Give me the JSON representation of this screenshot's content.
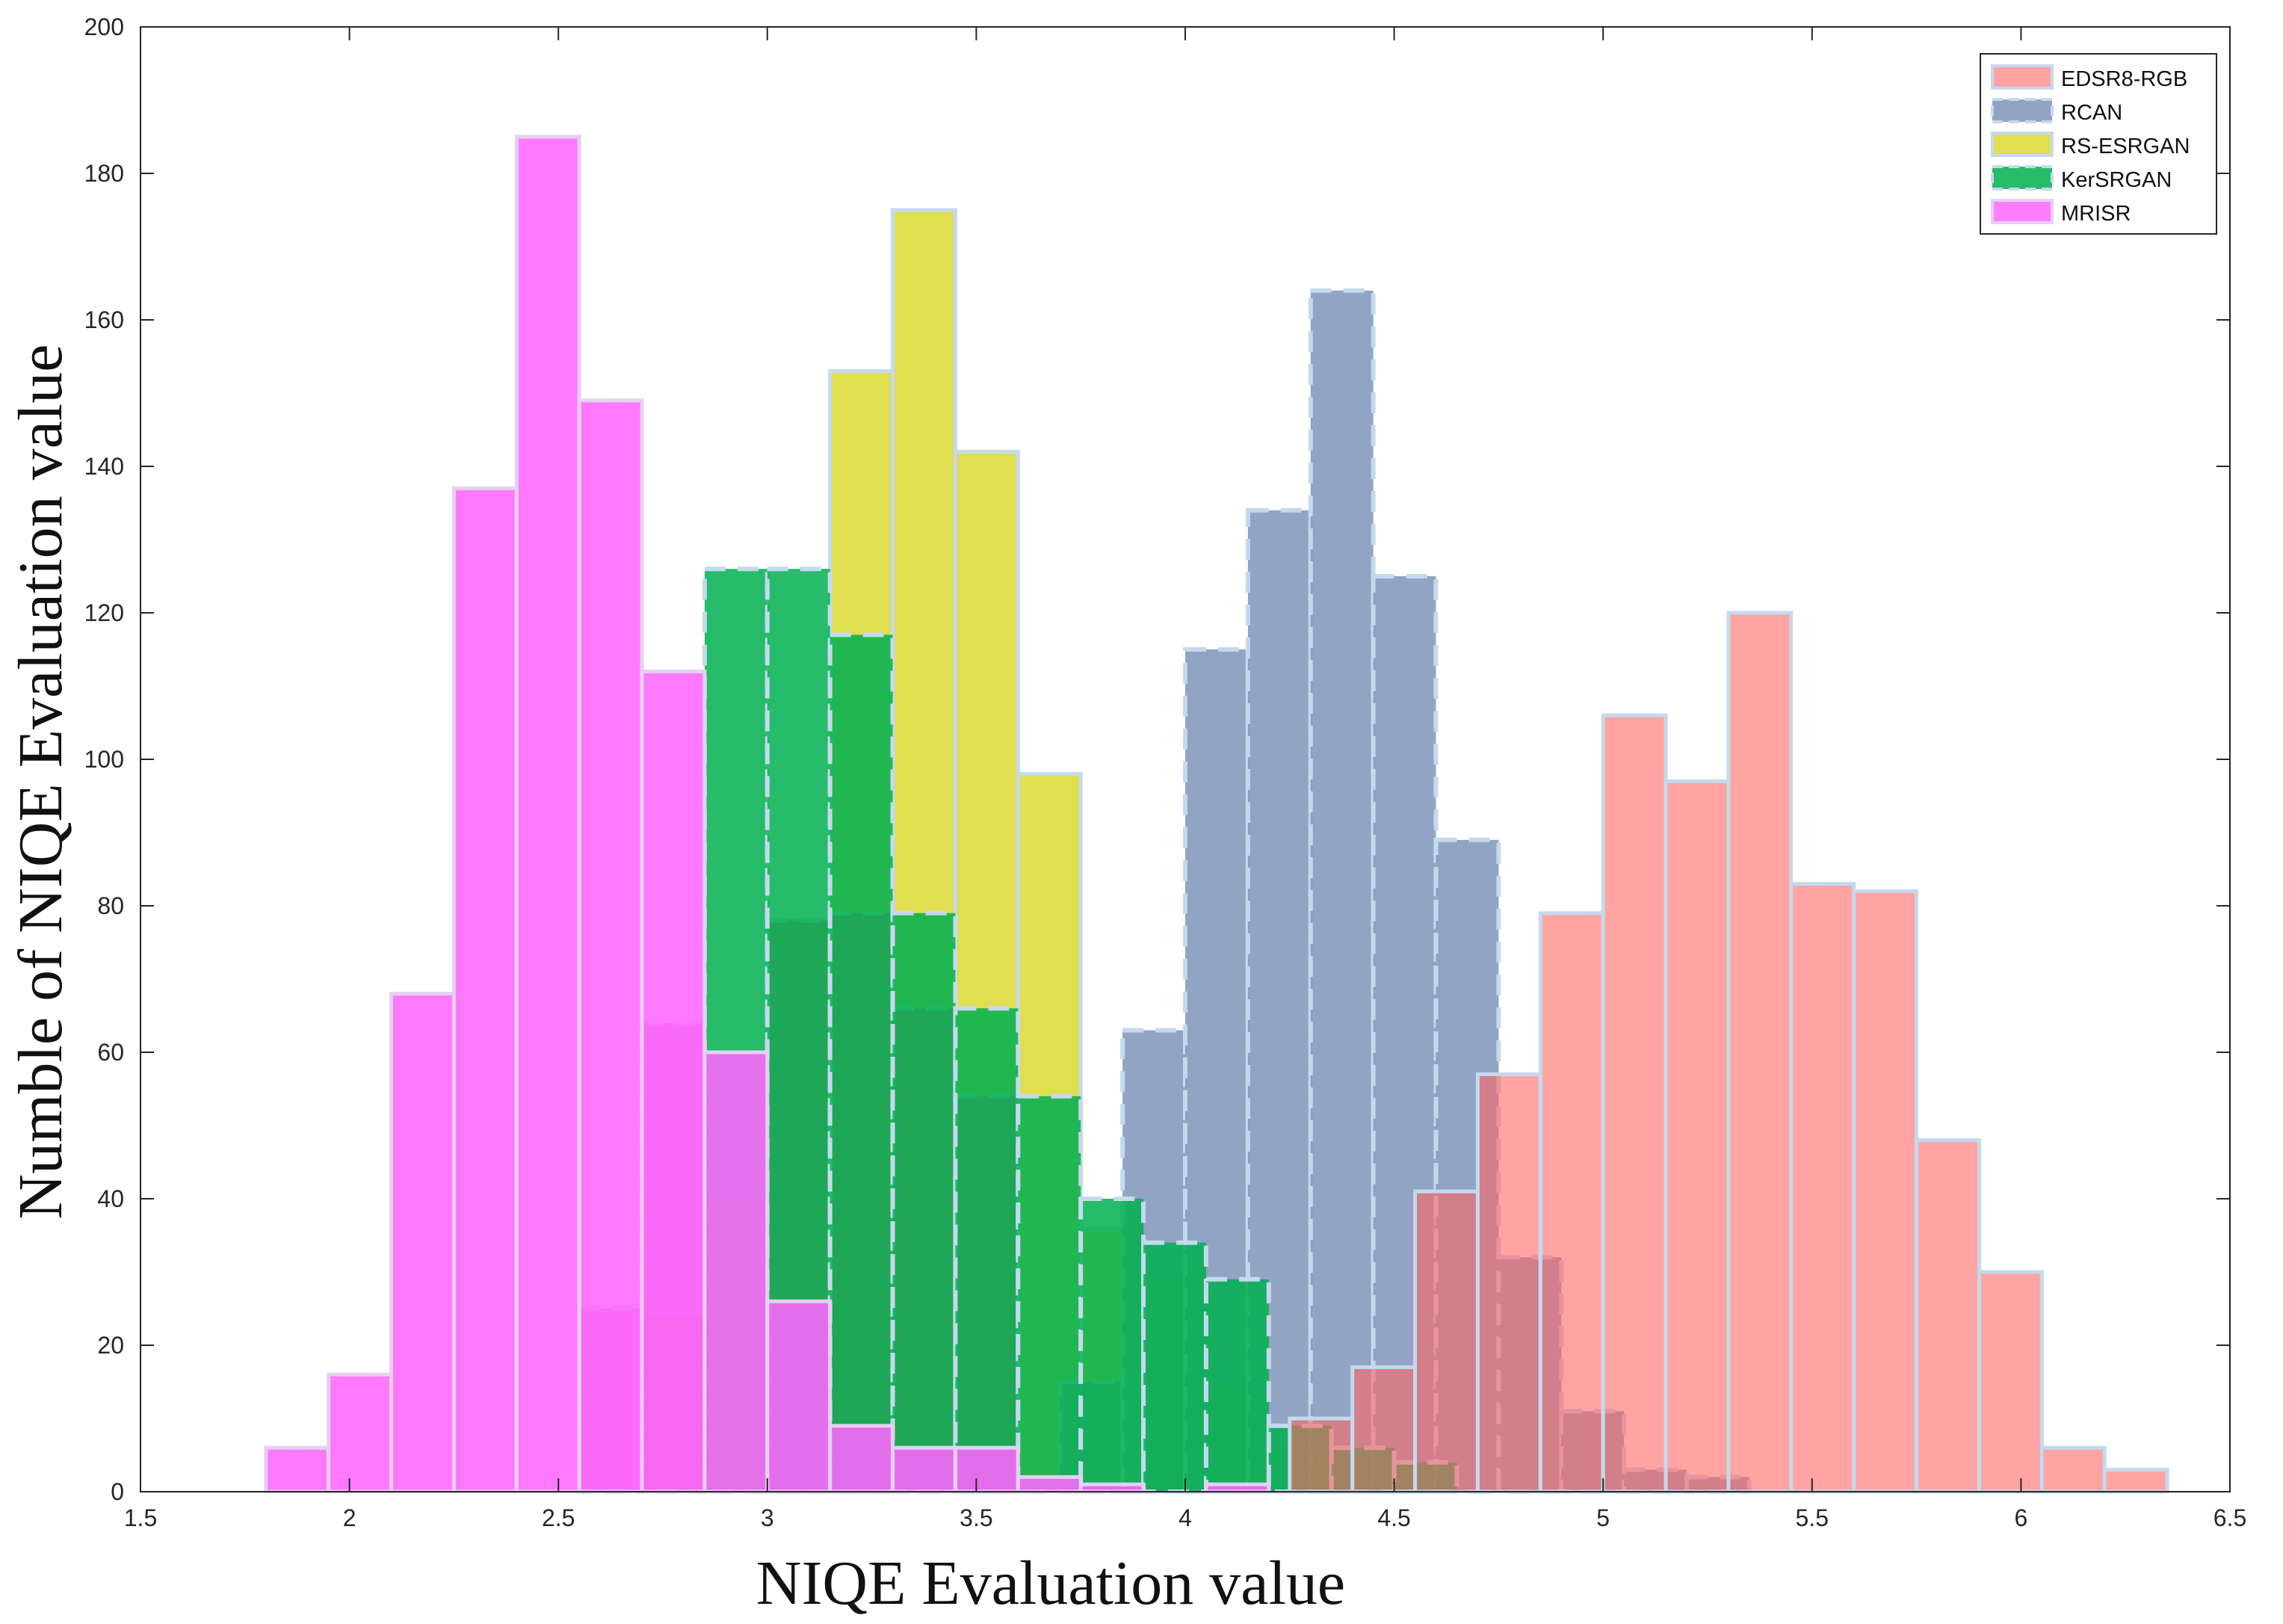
{
  "chart_data": {
    "type": "histogram",
    "title": "",
    "xlabel": "NIQE Evaluation value",
    "ylabel": "Numble of NIQE Evaluation value",
    "xlim": [
      1.5,
      6.5
    ],
    "ylim": [
      0,
      200
    ],
    "xticks": [
      1.5,
      2,
      2.5,
      3,
      3.5,
      4,
      4.5,
      5,
      5.5,
      6,
      6.5
    ],
    "xtick_labels": [
      "1.5",
      "2",
      "2.5",
      "3",
      "3.5",
      "4",
      "4.5",
      "5",
      "5.5",
      "6",
      "6.5"
    ],
    "yticks": [
      0,
      20,
      40,
      60,
      80,
      100,
      120,
      140,
      160,
      180,
      200
    ],
    "ytick_labels": [
      "0",
      "20",
      "40",
      "60",
      "80",
      "100",
      "120",
      "140",
      "160",
      "180",
      "200"
    ],
    "grid": false,
    "legend_position": "top-right",
    "series": [
      {
        "name": "EDSR8-RGB",
        "color": "#ff6666",
        "edge": "#c5d9ee",
        "dashed": false,
        "bins": [
          {
            "x0": 4.25,
            "x1": 4.4,
            "count": 10
          },
          {
            "x0": 4.4,
            "x1": 4.55,
            "count": 17
          },
          {
            "x0": 4.55,
            "x1": 4.7,
            "count": 41
          },
          {
            "x0": 4.7,
            "x1": 4.85,
            "count": 57
          },
          {
            "x0": 4.85,
            "x1": 5.0,
            "count": 79
          },
          {
            "x0": 5.0,
            "x1": 5.15,
            "count": 106
          },
          {
            "x0": 5.15,
            "x1": 5.3,
            "count": 97
          },
          {
            "x0": 5.3,
            "x1": 5.45,
            "count": 120
          },
          {
            "x0": 5.45,
            "x1": 5.6,
            "count": 83
          },
          {
            "x0": 5.6,
            "x1": 5.75,
            "count": 82
          },
          {
            "x0": 5.75,
            "x1": 5.9,
            "count": 48
          },
          {
            "x0": 5.9,
            "x1": 6.05,
            "count": 30
          },
          {
            "x0": 6.05,
            "x1": 6.2,
            "count": 6
          },
          {
            "x0": 6.2,
            "x1": 6.35,
            "count": 3
          }
        ]
      },
      {
        "name": "RCAN",
        "color": "#7f94b8",
        "edge": "#c5d9ee",
        "dashed": true,
        "bins": [
          {
            "x0": 3.7,
            "x1": 3.85,
            "count": 15
          },
          {
            "x0": 3.85,
            "x1": 4.0,
            "count": 63
          },
          {
            "x0": 4.0,
            "x1": 4.15,
            "count": 115
          },
          {
            "x0": 4.15,
            "x1": 4.3,
            "count": 134
          },
          {
            "x0": 4.3,
            "x1": 4.45,
            "count": 164
          },
          {
            "x0": 4.45,
            "x1": 4.6,
            "count": 125
          },
          {
            "x0": 4.6,
            "x1": 4.75,
            "count": 89
          },
          {
            "x0": 4.75,
            "x1": 4.9,
            "count": 32
          },
          {
            "x0": 4.9,
            "x1": 5.05,
            "count": 11
          },
          {
            "x0": 5.05,
            "x1": 5.2,
            "count": 3
          },
          {
            "x0": 5.2,
            "x1": 5.35,
            "count": 2
          }
        ]
      },
      {
        "name": "RS-ESRGAN",
        "color": "#d9d933",
        "edge": "#c5d9ee",
        "dashed": false,
        "bins": [
          {
            "x0": 2.7,
            "x1": 2.85,
            "count": 24
          },
          {
            "x0": 2.85,
            "x1": 3.0,
            "count": 40
          },
          {
            "x0": 3.0,
            "x1": 3.15,
            "count": 78
          },
          {
            "x0": 3.15,
            "x1": 3.3,
            "count": 153
          },
          {
            "x0": 3.3,
            "x1": 3.45,
            "count": 175
          },
          {
            "x0": 3.45,
            "x1": 3.6,
            "count": 142
          },
          {
            "x0": 3.6,
            "x1": 3.75,
            "count": 98
          },
          {
            "x0": 3.75,
            "x1": 3.9,
            "count": 36
          },
          {
            "x0": 3.9,
            "x1": 4.05,
            "count": 30
          },
          {
            "x0": 4.05,
            "x1": 4.2,
            "count": 15
          },
          {
            "x0": 4.2,
            "x1": 4.35,
            "count": 6
          }
        ]
      },
      {
        "name": "KerSRGAN",
        "color": "#00b050",
        "overlap_color": "#00a000",
        "edge": "#c5d9ee",
        "dashed": true,
        "bins": [
          {
            "x0": 2.85,
            "x1": 3.0,
            "count": 126
          },
          {
            "x0": 3.0,
            "x1": 3.15,
            "count": 126
          },
          {
            "x0": 3.15,
            "x1": 3.3,
            "count": 117
          },
          {
            "x0": 3.3,
            "x1": 3.45,
            "count": 79
          },
          {
            "x0": 3.45,
            "x1": 3.6,
            "count": 66
          },
          {
            "x0": 3.6,
            "x1": 3.75,
            "count": 54
          },
          {
            "x0": 3.75,
            "x1": 3.9,
            "count": 40
          },
          {
            "x0": 3.9,
            "x1": 4.05,
            "count": 34
          },
          {
            "x0": 4.05,
            "x1": 4.2,
            "count": 29
          },
          {
            "x0": 4.2,
            "x1": 4.35,
            "count": 9
          },
          {
            "x0": 4.35,
            "x1": 4.5,
            "count": 6
          },
          {
            "x0": 4.5,
            "x1": 4.65,
            "count": 4
          }
        ]
      },
      {
        "name": "MRISR",
        "color": "#ff66ff",
        "edge": "#e6d0f2",
        "dashed": false,
        "bins": [
          {
            "x0": 1.8,
            "x1": 1.95,
            "count": 6
          },
          {
            "x0": 1.95,
            "x1": 2.1,
            "count": 16
          },
          {
            "x0": 2.1,
            "x1": 2.25,
            "count": 68
          },
          {
            "x0": 2.25,
            "x1": 2.4,
            "count": 137
          },
          {
            "x0": 2.4,
            "x1": 2.55,
            "count": 185
          },
          {
            "x0": 2.55,
            "x1": 2.7,
            "count": 149
          },
          {
            "x0": 2.7,
            "x1": 2.85,
            "count": 112
          },
          {
            "x0": 2.85,
            "x1": 3.0,
            "count": 60
          },
          {
            "x0": 3.0,
            "x1": 3.15,
            "count": 26
          },
          {
            "x0": 3.15,
            "x1": 3.3,
            "count": 9
          },
          {
            "x0": 3.3,
            "x1": 3.45,
            "count": 6
          },
          {
            "x0": 3.45,
            "x1": 3.6,
            "count": 6
          },
          {
            "x0": 3.6,
            "x1": 3.75,
            "count": 2
          },
          {
            "x0": 3.75,
            "x1": 3.9,
            "count": 1
          },
          {
            "x0": 4.05,
            "x1": 4.2,
            "count": 1
          }
        ]
      }
    ],
    "background_bins": {
      "note": "lower dashed bins drawn behind the green and magenta bars",
      "color": "#c12fa8",
      "bins": [
        {
          "x0": 2.55,
          "x1": 2.7,
          "count": 25
        },
        {
          "x0": 2.7,
          "x1": 2.85,
          "count": 64
        },
        {
          "x0": 3.0,
          "x1": 3.15,
          "count": 78
        },
        {
          "x0": 3.15,
          "x1": 3.3,
          "count": 79
        },
        {
          "x0": 3.3,
          "x1": 3.45,
          "count": 66
        },
        {
          "x0": 3.45,
          "x1": 3.6,
          "count": 54
        }
      ]
    }
  }
}
